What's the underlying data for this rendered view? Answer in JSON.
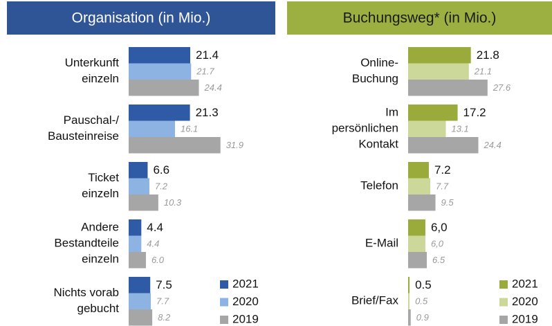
{
  "chart_data": [
    {
      "type": "barh",
      "title": "Organisation (in Mio.)",
      "categories": [
        "Unterkunft\neinzeln",
        "Pauschal-/\nBausteinreise",
        "Ticket\neinzeln",
        "Andere\nBestandteile\neinzeln",
        "Nichts vorab\ngebucht"
      ],
      "xlim": [
        0,
        50
      ],
      "series": [
        {
          "name": "2021",
          "color": "#2e5aa6",
          "values": [
            21.4,
            21.3,
            6.6,
            4.4,
            7.5
          ],
          "value_labels": [
            "21.4",
            "21.3",
            "6.6",
            "4.4",
            "7.5"
          ]
        },
        {
          "name": "2020",
          "color": "#8db3e2",
          "values": [
            21.7,
            16.1,
            7.2,
            4.4,
            7.7
          ],
          "value_labels": [
            "21.7",
            "16.1",
            "7.2",
            "4.4",
            "7.7"
          ]
        },
        {
          "name": "2019",
          "color": "#a6a6a6",
          "values": [
            24.4,
            31.9,
            10.3,
            6.0,
            8.2
          ],
          "value_labels": [
            "24.4",
            "31.9",
            "10.3",
            "6.0",
            "8.2"
          ]
        }
      ]
    },
    {
      "type": "barh",
      "title": "Buchungsweg* (in Mio.)",
      "categories": [
        "Online-\nBuchung",
        "Im\npersönlichen\nKontakt",
        "Telefon",
        "E-Mail",
        "Brief/Fax"
      ],
      "xlim": [
        0,
        50
      ],
      "series": [
        {
          "name": "2021",
          "color": "#9aab3c",
          "values": [
            21.8,
            17.2,
            7.2,
            6.0,
            0.5
          ],
          "value_labels": [
            "21.8",
            "17.2",
            "7.2",
            "6,0",
            "0.5"
          ]
        },
        {
          "name": "2020",
          "color": "#ccd79a",
          "values": [
            21.1,
            13.1,
            7.7,
            6.0,
            0.5
          ],
          "value_labels": [
            "21.1",
            "13.1",
            "7.7",
            "6,0",
            "0.5"
          ]
        },
        {
          "name": "2019",
          "color": "#a6a6a6",
          "values": [
            27.6,
            24.4,
            9.5,
            6.5,
            0.9
          ],
          "value_labels": [
            "27.6",
            "24.4",
            "9.5",
            "6.5",
            "0.9"
          ]
        }
      ]
    }
  ]
}
